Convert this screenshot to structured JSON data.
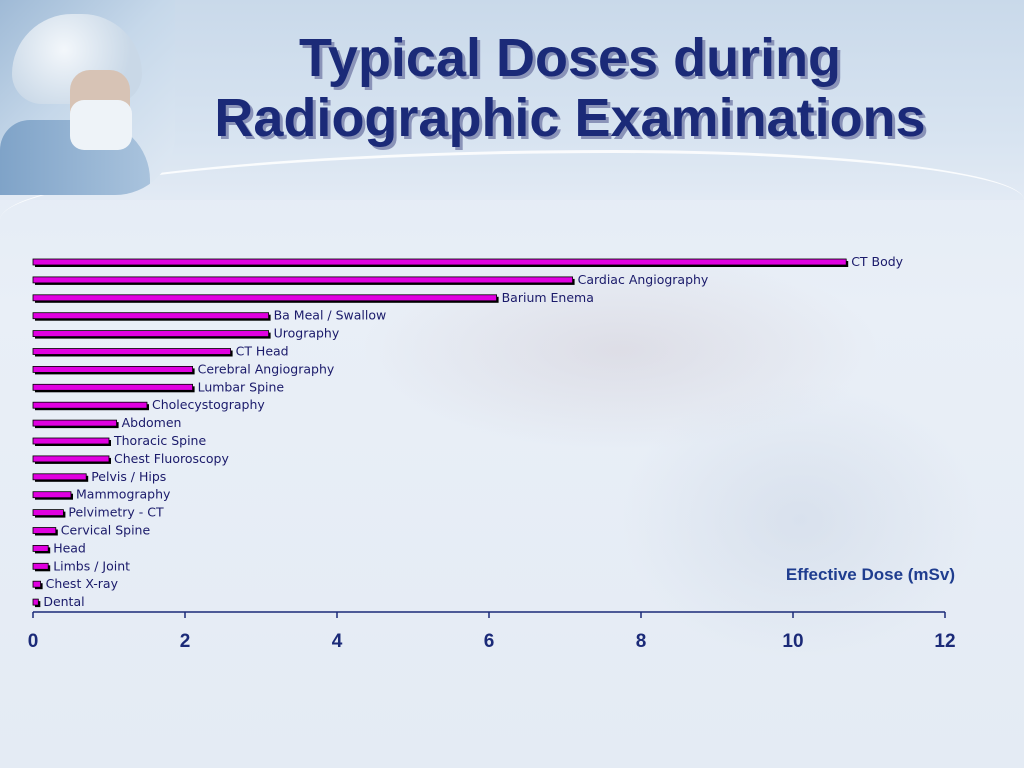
{
  "title": {
    "line1": "Typical Doses during",
    "line2": "Radiographic Examinations"
  },
  "chart_data": {
    "type": "bar",
    "orientation": "horizontal",
    "title": "Typical Doses during Radiographic Examinations",
    "xlabel": "Effective Dose (mSv)",
    "ylabel": "",
    "xlim": [
      0,
      12
    ],
    "xticks": [
      "0",
      "2",
      "4",
      "6",
      "8",
      "10",
      "12"
    ],
    "grid": false,
    "categories": [
      "CT Body",
      "Cardiac Angiography",
      "Barium Enema",
      "Ba Meal / Swallow",
      "Urography",
      "CT Head",
      "Cerebral Angiography",
      "Lumbar Spine",
      "Cholecystography",
      "Abdomen",
      "Thoracic Spine",
      "Chest Fluoroscopy",
      "Pelvis / Hips",
      "Mammography",
      "Pelvimetry - CT",
      "Cervical Spine",
      "Head",
      "Limbs / Joint",
      "Chest X-ray",
      "Dental"
    ],
    "values": [
      10.7,
      7.1,
      6.1,
      3.1,
      3.1,
      2.6,
      2.1,
      2.1,
      1.5,
      1.1,
      1.0,
      1.0,
      0.7,
      0.5,
      0.4,
      0.3,
      0.2,
      0.2,
      0.1,
      0.07
    ],
    "colors": {
      "bar": "#e000e0",
      "bar_edge": "#000000",
      "axis": "#1b2a78",
      "labels": "#1a1a6a"
    }
  }
}
